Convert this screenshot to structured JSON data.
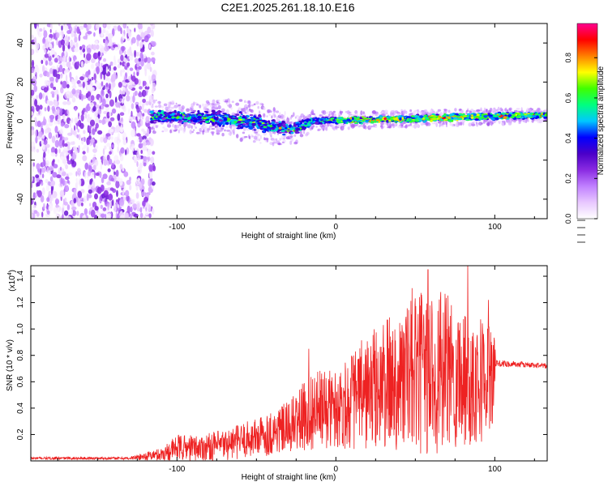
{
  "title": "C2E1.2025.261.18.10.E16",
  "colors": {
    "snr_line": "#ee2222",
    "axis": "#000000",
    "background": "#ffffff",
    "colormap": [
      "#ffffff",
      "#e8c8ff",
      "#c080ff",
      "#8a2be2",
      "#4b00c8",
      "#0000ff",
      "#00c8ff",
      "#00ff80",
      "#40ff00",
      "#ffff00",
      "#ff8000",
      "#ff0000",
      "#ff0090"
    ]
  },
  "chart_data": [
    {
      "type": "heatmap",
      "name": "spectrogram",
      "xlabel": "Height of straight line (km)",
      "ylabel": "Frequency (Hz)",
      "xlim": [
        -192,
        133
      ],
      "ylim": [
        -50,
        50
      ],
      "xticks": [
        -100,
        0,
        100
      ],
      "xtick_labels": [
        "-100",
        "0",
        "100"
      ],
      "yticks": [
        -40,
        -20,
        0,
        20,
        40
      ],
      "ytick_labels": [
        "-40",
        "-20",
        "0",
        "20",
        "40"
      ],
      "noise_region_x": [
        -192,
        -114
      ],
      "signal_track": [
        {
          "x": -115,
          "f": 2.5,
          "w": 4
        },
        {
          "x": -95,
          "f": 2.0,
          "w": 3.5
        },
        {
          "x": -80,
          "f": 1.5,
          "w": 4
        },
        {
          "x": -65,
          "f": 1.0,
          "w": 5
        },
        {
          "x": -55,
          "f": 0.0,
          "w": 5
        },
        {
          "x": -45,
          "f": -2.0,
          "w": 5
        },
        {
          "x": -35,
          "f": -3.5,
          "w": 4
        },
        {
          "x": -25,
          "f": -4.0,
          "w": 3.5
        },
        {
          "x": -15,
          "f": 0.0,
          "w": 2.5
        },
        {
          "x": 0,
          "f": 0.5,
          "w": 2
        },
        {
          "x": 20,
          "f": 0.5,
          "w": 2
        },
        {
          "x": 40,
          "f": 1.0,
          "w": 2
        },
        {
          "x": 60,
          "f": 1.5,
          "w": 2
        },
        {
          "x": 80,
          "f": 2.0,
          "w": 2
        },
        {
          "x": 100,
          "f": 2.5,
          "w": 2
        },
        {
          "x": 133,
          "f": 3.0,
          "w": 1.5
        }
      ],
      "colorbar": {
        "label": "Normalized spectral amplitude",
        "range": [
          0,
          0.97
        ],
        "ticks": [
          0.0,
          0.2,
          0.4,
          0.6,
          0.8
        ],
        "tick_labels": [
          "0.0",
          "0.2",
          "0.4",
          "0.6",
          "0.8"
        ]
      }
    },
    {
      "type": "line",
      "name": "snr",
      "xlabel": "Height of straight line (km)",
      "ylabel": "SNR (10 * v/v)",
      "multiplier_label": "(x10",
      "multiplier_exp": "4",
      "multiplier_close": ")",
      "xlim": [
        -192,
        133
      ],
      "ylim": [
        0,
        1.48
      ],
      "xticks": [
        -100,
        0,
        100
      ],
      "xtick_labels": [
        "-100",
        "0",
        "100"
      ],
      "yticks": [
        0.2,
        0.4,
        0.6,
        0.8,
        1.0,
        1.2,
        1.4
      ],
      "ytick_labels": [
        "0.2",
        "0.4",
        "0.6",
        "0.8",
        "1.0",
        "1.2",
        "1.4"
      ],
      "envelope": [
        {
          "x": -192,
          "base": 0.02,
          "amp": 0.01
        },
        {
          "x": -130,
          "base": 0.02,
          "amp": 0.01
        },
        {
          "x": -110,
          "base": 0.05,
          "amp": 0.05
        },
        {
          "x": -100,
          "base": 0.1,
          "amp": 0.1
        },
        {
          "x": -85,
          "base": 0.1,
          "amp": 0.1
        },
        {
          "x": -70,
          "base": 0.12,
          "amp": 0.12
        },
        {
          "x": -50,
          "base": 0.18,
          "amp": 0.15
        },
        {
          "x": -30,
          "base": 0.25,
          "amp": 0.2
        },
        {
          "x": -15,
          "base": 0.38,
          "amp": 0.3
        },
        {
          "x": 0,
          "base": 0.4,
          "amp": 0.3
        },
        {
          "x": 20,
          "base": 0.52,
          "amp": 0.45
        },
        {
          "x": 40,
          "base": 0.62,
          "amp": 0.55
        },
        {
          "x": 60,
          "base": 0.68,
          "amp": 0.65
        },
        {
          "x": 80,
          "base": 0.65,
          "amp": 0.55
        },
        {
          "x": 99,
          "base": 0.62,
          "amp": 0.45
        },
        {
          "x": 101,
          "base": 0.74,
          "amp": 0.025
        },
        {
          "x": 133,
          "base": 0.72,
          "amp": 0.02
        }
      ],
      "peaks": [
        {
          "x": -17,
          "y": 0.85
        },
        {
          "x": 48,
          "y": 1.31
        },
        {
          "x": 58,
          "y": 1.45
        },
        {
          "x": 83,
          "y": 1.48
        },
        {
          "x": 96,
          "y": 1.22
        }
      ]
    }
  ]
}
